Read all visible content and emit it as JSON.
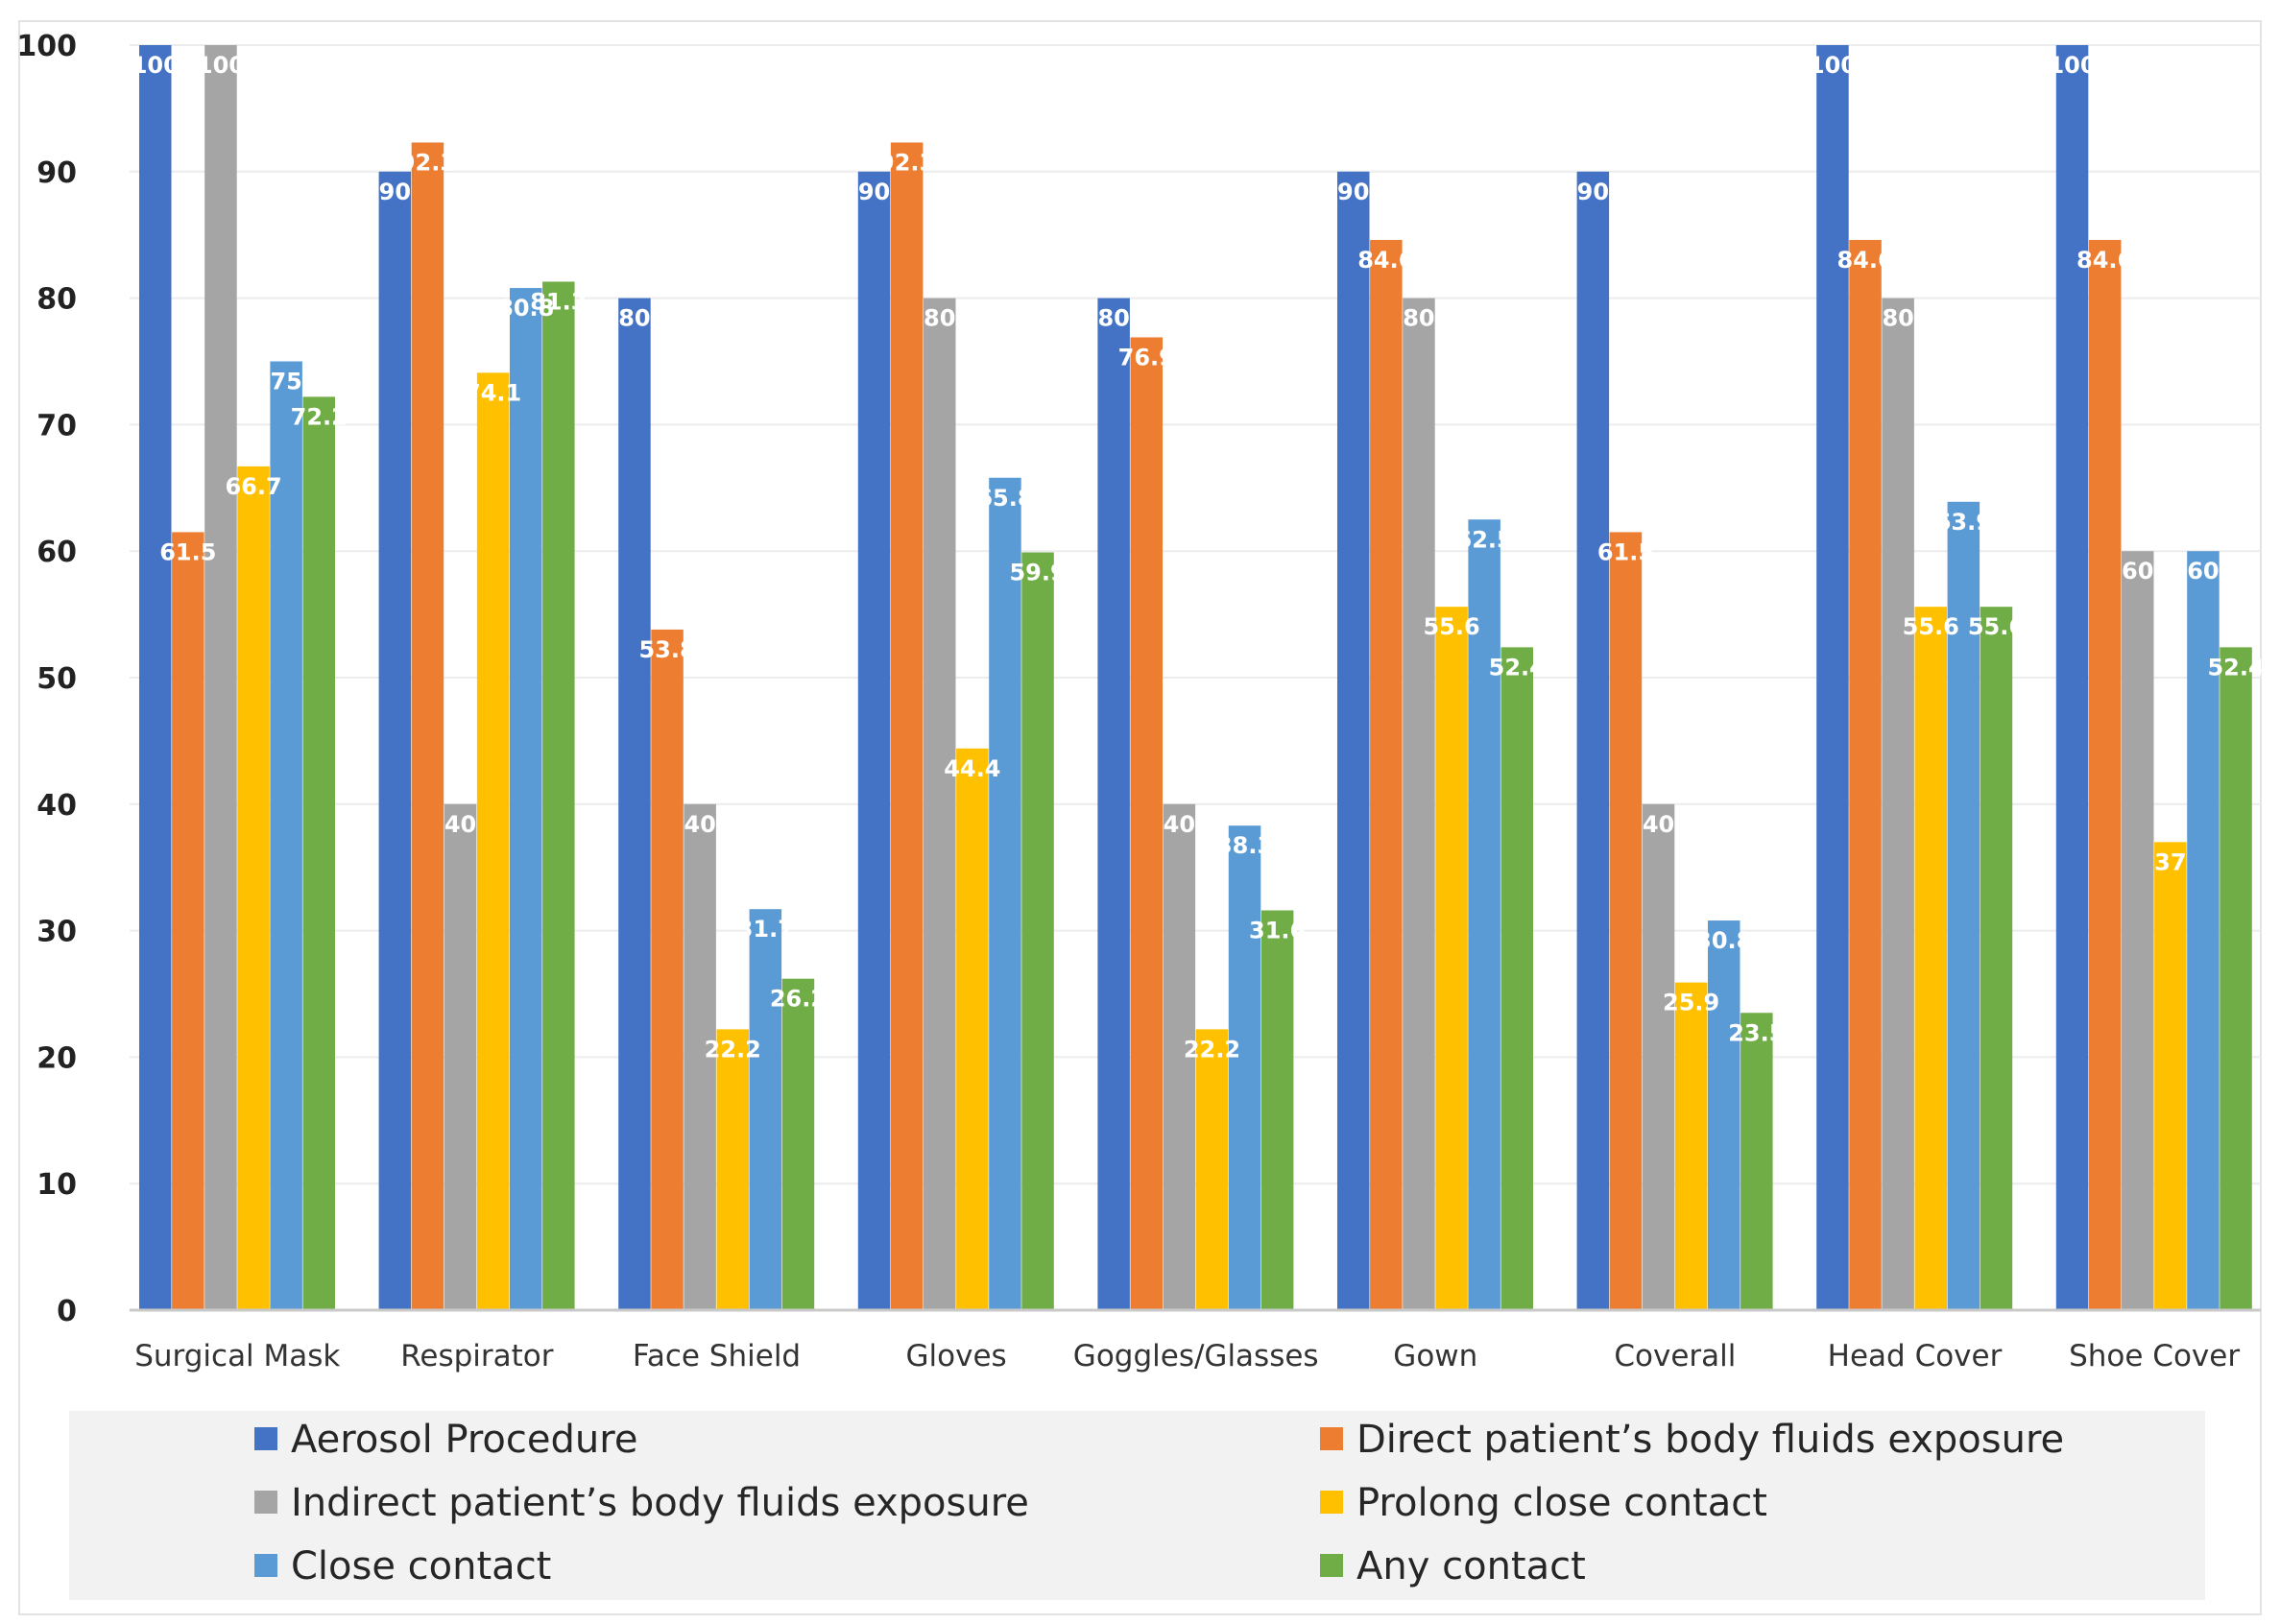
{
  "chart_data": {
    "type": "bar",
    "title": "",
    "xlabel": "",
    "ylabel": "",
    "ylim": [
      0,
      100
    ],
    "yticks": [
      0,
      10,
      20,
      30,
      40,
      50,
      60,
      70,
      80,
      90,
      100
    ],
    "grid": true,
    "legend_position": "bottom",
    "categories": [
      "Surgical Mask",
      "Respirator",
      "Face Shield",
      "Gloves",
      "Goggles/Glasses",
      "Gown",
      "Coverall",
      "Head Cover",
      "Shoe Cover"
    ],
    "series": [
      {
        "name": "Aerosol Procedure",
        "color": "#4472c4",
        "values": [
          100,
          90,
          80,
          90,
          80,
          90,
          90,
          100,
          100
        ],
        "labels": [
          "100",
          "90",
          "80",
          "90",
          "80",
          "90",
          "90",
          "100",
          "100"
        ]
      },
      {
        "name": "Direct patient’s body fluids exposure",
        "color": "#ed7d31",
        "values": [
          61.5,
          92.3,
          53.8,
          92.3,
          76.9,
          84.6,
          61.5,
          84.6,
          84.6
        ],
        "labels": [
          "61.5",
          "92.3",
          "53.8",
          "92.3",
          "76.9",
          "84.6",
          "61.5",
          "84.6",
          "84.6"
        ]
      },
      {
        "name": "Indirect patient’s body fluids exposure",
        "color": "#a5a5a5",
        "values": [
          100,
          40,
          40,
          80,
          40,
          80,
          40,
          80,
          60
        ],
        "labels": [
          "100",
          "40",
          "40",
          "80",
          "40",
          "80",
          "40",
          "80",
          "60"
        ]
      },
      {
        "name": "Prolong close contact",
        "color": "#ffc000",
        "values": [
          66.7,
          74.1,
          22.2,
          44.4,
          22.2,
          55.6,
          25.9,
          55.6,
          37
        ],
        "labels": [
          "66.7",
          "74.1",
          "22.2",
          "44.4",
          "22.2",
          "55.6",
          "25.9",
          "55.6",
          "37"
        ]
      },
      {
        "name": "Close contact",
        "color": "#5b9bd5",
        "values": [
          75,
          80.8,
          31.7,
          65.8,
          38.3,
          62.5,
          30.8,
          63.9,
          60
        ],
        "labels": [
          "75",
          "80.8",
          "31.7",
          "65.8",
          "38.3",
          "62.5",
          "30.8",
          "63.9",
          "60"
        ]
      },
      {
        "name": "Any contact",
        "color": "#70ad47",
        "values": [
          72.2,
          81.3,
          26.2,
          59.9,
          31.6,
          52.4,
          23.5,
          55.6,
          52.4
        ],
        "labels": [
          "72.2",
          "81.3",
          "26.2",
          "59.9",
          "31.6",
          "52.4",
          "23.5",
          "55.6",
          "52.4"
        ]
      }
    ]
  }
}
